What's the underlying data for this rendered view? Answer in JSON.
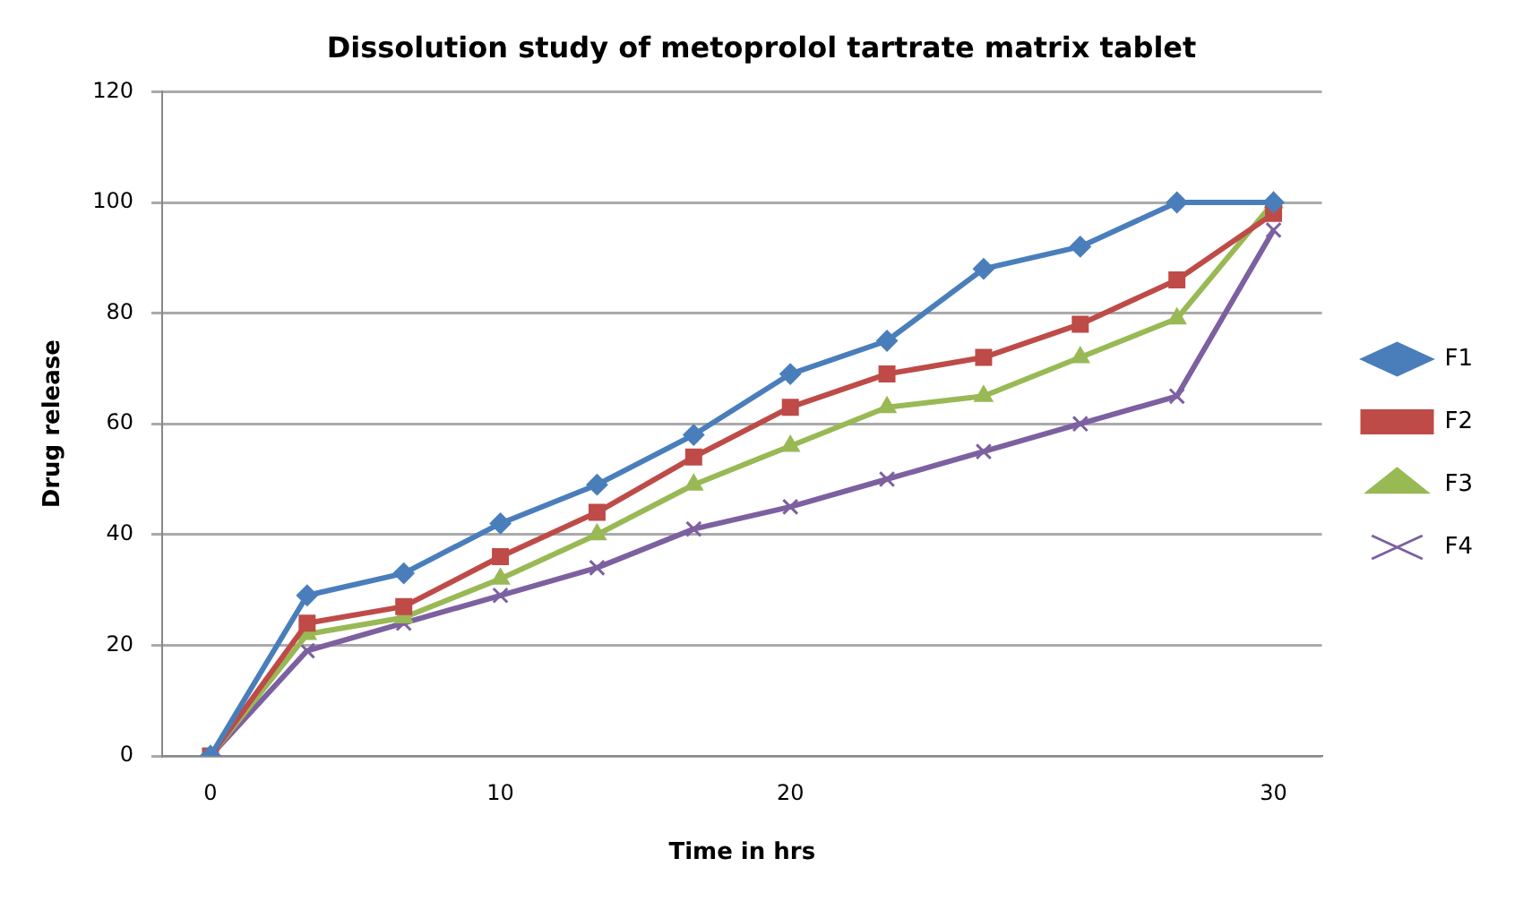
{
  "chart_data": {
    "type": "line",
    "title": "Dissolution study of metoprolol tartrate matrix tablet",
    "xlabel": "Time in hrs",
    "ylabel": "Drug release",
    "categories": [
      "0",
      null,
      null,
      "10",
      null,
      null,
      "20",
      null,
      null,
      null,
      null,
      "30"
    ],
    "series": [
      {
        "name": "F1",
        "color": "#4a7ebb",
        "marker": "diamond",
        "values": [
          0,
          29,
          33,
          42,
          49,
          58,
          69,
          75,
          88,
          92,
          100,
          100
        ]
      },
      {
        "name": "F2",
        "color": "#be4b48",
        "marker": "square",
        "values": [
          0,
          24,
          27,
          36,
          44,
          54,
          63,
          69,
          72,
          78,
          86,
          98
        ]
      },
      {
        "name": "F3",
        "color": "#98b954",
        "marker": "triangle",
        "values": [
          0,
          22,
          25,
          32,
          40,
          49,
          56,
          63,
          65,
          72,
          79,
          100
        ]
      },
      {
        "name": "F4",
        "color": "#7d60a0",
        "marker": "cross",
        "values": [
          0,
          19,
          24,
          29,
          34,
          41,
          45,
          50,
          55,
          60,
          65,
          95
        ]
      }
    ],
    "ylim": [
      0,
      120
    ],
    "yticks": [
      0,
      20,
      40,
      60,
      80,
      100,
      120
    ],
    "grid": "y",
    "legend": "right"
  }
}
